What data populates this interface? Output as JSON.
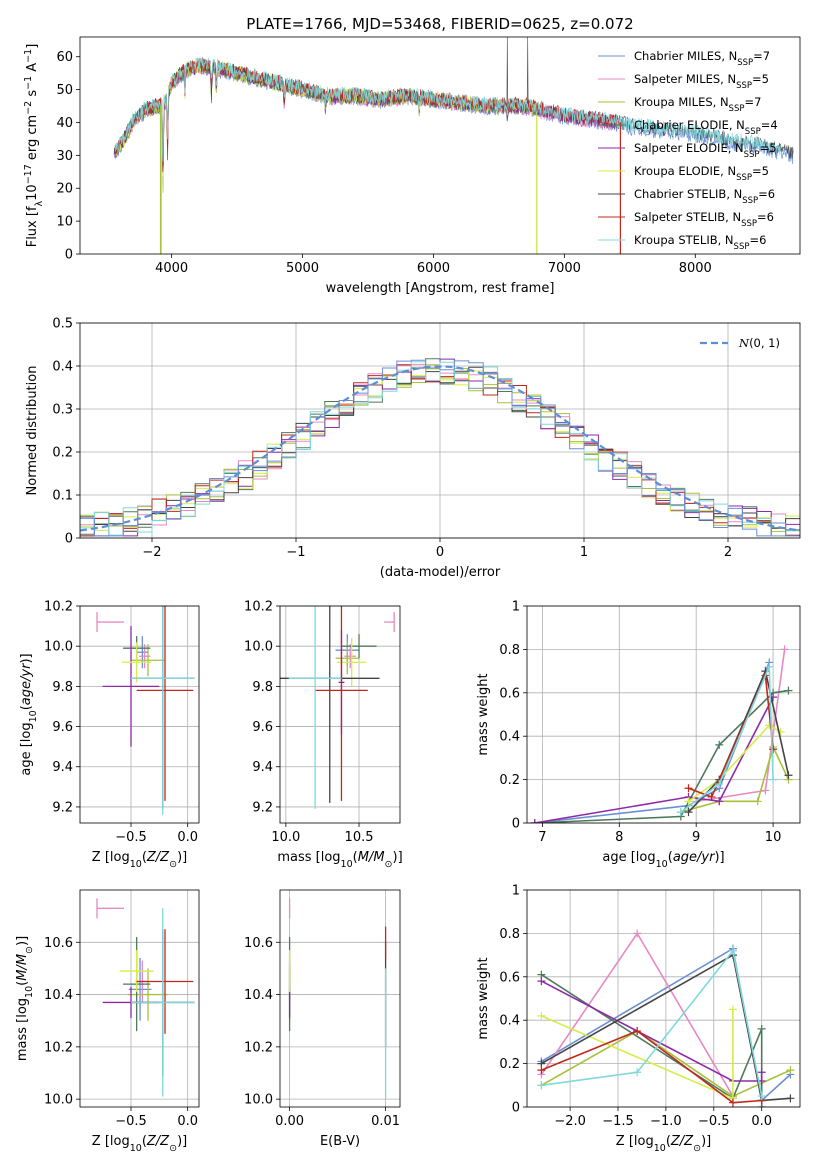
{
  "figure_title": "PLATE=1766, MJD=53468, FIBERID=0625, z=0.072",
  "colors": [
    "#6a8fd6",
    "#e68ac3",
    "#a6c13a",
    "#4e7a5c",
    "#8e2aa8",
    "#d6ec48",
    "#444444",
    "#c0281e",
    "#7fd8dc"
  ],
  "model_names": [
    "Chabrier MILES, N_SSP=7",
    "Salpeter MILES, N_SSP=5",
    "Kroupa MILES, N_SSP=7",
    "Chabrier ELODIE, N_SSP=4",
    "Salpeter ELODIE, N_SSP=5",
    "Kroupa ELODIE, N_SSP=5",
    "Chabrier STELIB, N_SSP=6",
    "Salpeter STELIB, N_SSP=6",
    "Kroupa STELIB, N_SSP=6"
  ],
  "chart_data": [
    {
      "id": "spectrum",
      "type": "line",
      "xlabel": "wavelength [Angstrom, rest frame]",
      "ylabel": "Flux [f_λ 10^-17 erg cm^-2 s^-1 A^-1]",
      "xlim": [
        3300,
        8800
      ],
      "ylim": [
        0,
        66
      ],
      "xticks": [
        4000,
        5000,
        6000,
        7000,
        8000
      ],
      "yticks": [
        0,
        10,
        20,
        30,
        40,
        50,
        60
      ],
      "grid": false,
      "legend": "top-right",
      "continuum": {
        "x": [
          3570,
          3640,
          3700,
          3800,
          3900,
          3950,
          4000,
          4100,
          4200,
          4300,
          4400,
          4500,
          4600,
          4700,
          4800,
          4900,
          5000,
          5200,
          5400,
          5600,
          5800,
          6000,
          6200,
          6400,
          6500,
          6600,
          6700,
          6800,
          6900,
          7000,
          7200,
          7400,
          7500,
          7700,
          7900,
          8100,
          8300,
          8500,
          8750
        ],
        "y": [
          31,
          35,
          40,
          44,
          45,
          46,
          52,
          56,
          57,
          57,
          56,
          55,
          54,
          53,
          52,
          51,
          50,
          48,
          48,
          47,
          48,
          47,
          46,
          45,
          45,
          45,
          45,
          44,
          43,
          42,
          41,
          40,
          39,
          38,
          37,
          36,
          34,
          33,
          30
        ]
      },
      "absorption_lines": [
        [
          3934,
          30
        ],
        [
          3969,
          20
        ],
        [
          4102,
          8
        ],
        [
          4304,
          10
        ],
        [
          4341,
          8
        ],
        [
          4861,
          7
        ],
        [
          5175,
          5
        ],
        [
          5890,
          4
        ],
        [
          6563,
          4
        ]
      ],
      "dropouts": [
        [
          3920,
          0
        ],
        [
          6790,
          0
        ],
        [
          7430,
          0
        ]
      ],
      "emission_spikes": [
        [
          6565,
          66
        ],
        [
          6720,
          66
        ]
      ]
    },
    {
      "id": "residual_hist",
      "type": "histogram",
      "xlabel": "(data-model)/error",
      "ylabel": "Normed distribution",
      "xlim": [
        -2.5,
        2.5
      ],
      "ylim": [
        0,
        0.5
      ],
      "xticks": [
        -2,
        -1,
        0,
        1,
        2
      ],
      "yticks": [
        0,
        0.1,
        0.2,
        0.3,
        0.4,
        0.5
      ],
      "grid": true,
      "legend": "top-right",
      "reference_curve": {
        "name": "N(0,1)",
        "mu": 0,
        "sigma": 1
      },
      "bin_width": 0.1
    },
    {
      "id": "age_vs_Z",
      "type": "scatter",
      "xlabel": "Z [log10(Z/Z_sun)]",
      "ylabel": "age [log10(age/yr)]",
      "xlim": [
        -0.95,
        0.1
      ],
      "ylim": [
        9.12,
        10.2
      ],
      "xticks": [
        -0.5,
        0.0
      ],
      "yticks": [
        9.2,
        9.4,
        9.6,
        9.8,
        10.0,
        10.2
      ],
      "grid": true,
      "points": [
        {
          "x": -0.4,
          "y": 9.97,
          "xerr": 0.05,
          "yerr": 0.08,
          "c": 0
        },
        {
          "x": -0.38,
          "y": 9.95,
          "xerr": 0.05,
          "yerr": 0.06,
          "c": 1
        },
        {
          "x": -0.35,
          "y": 9.93,
          "xerr": 0.15,
          "yerr": 0.08,
          "c": 2
        },
        {
          "x": -0.45,
          "y": 9.99,
          "xerr": 0.12,
          "yerr": 0.06,
          "c": 3
        },
        {
          "x": -0.5,
          "y": 9.8,
          "xerr": 0.25,
          "yerr": 0.3,
          "c": 4
        },
        {
          "x": -0.45,
          "y": 9.92,
          "xerr": 0.13,
          "yerr": 0.1,
          "c": 5
        },
        {
          "x": -0.22,
          "y": 9.84,
          "xerr": 0.28,
          "yerr": 0.65,
          "c": 6
        },
        {
          "x": -0.2,
          "y": 9.78,
          "xerr": 0.25,
          "yerr": 0.55,
          "c": 7
        },
        {
          "x": -0.22,
          "y": 9.84,
          "xerr": 0.28,
          "yerr": 0.68,
          "c": 8
        }
      ],
      "legend_sample": {
        "x": -0.8,
        "y": 10.12,
        "c": 1
      }
    },
    {
      "id": "age_vs_mass",
      "type": "scatter",
      "xlabel": "mass [log10(M/M_sun)]",
      "ylabel": "",
      "xlim": [
        9.96,
        10.78
      ],
      "ylim": [
        9.12,
        10.2
      ],
      "xticks": [
        10.0,
        10.5
      ],
      "yticks": [
        9.2,
        9.4,
        9.6,
        9.8,
        10.0,
        10.2
      ],
      "grid": true,
      "points": [
        {
          "x": 10.42,
          "y": 9.98,
          "xerr": 0.08,
          "yerr": 0.08,
          "c": 0
        },
        {
          "x": 10.44,
          "y": 9.95,
          "xerr": 0.04,
          "yerr": 0.06,
          "c": 1
        },
        {
          "x": 10.42,
          "y": 9.94,
          "xerr": 0.08,
          "yerr": 0.08,
          "c": 2
        },
        {
          "x": 10.5,
          "y": 10.0,
          "xerr": 0.12,
          "yerr": 0.06,
          "c": 3
        },
        {
          "x": 10.38,
          "y": 9.82,
          "xerr": 0.02,
          "yerr": 0.26,
          "c": 4
        },
        {
          "x": 10.45,
          "y": 9.92,
          "xerr": 0.1,
          "yerr": 0.12,
          "c": 5
        },
        {
          "x": 10.3,
          "y": 9.84,
          "xerr": 0.34,
          "yerr": 0.62,
          "c": 6
        },
        {
          "x": 10.38,
          "y": 9.78,
          "xerr": 0.18,
          "yerr": 0.55,
          "c": 7
        },
        {
          "x": 10.2,
          "y": 9.84,
          "xerr": 0.18,
          "yerr": 0.65,
          "c": 8
        }
      ],
      "legend_sample": {
        "x": 10.74,
        "y": 10.12,
        "c": 1
      }
    },
    {
      "id": "weight_vs_age",
      "type": "line",
      "xlabel": "age [log10(age/yr)]",
      "ylabel": "mass weight",
      "xlim": [
        6.8,
        10.35
      ],
      "ylim": [
        0,
        1.0
      ],
      "xticks": [
        7,
        8,
        9,
        10
      ],
      "yticks": [
        0,
        0.2,
        0.4,
        0.6,
        0.8,
        1.0
      ],
      "grid": true,
      "series": [
        {
          "c": 0,
          "x": [
            6.9,
            8.9,
            9.3,
            9.95
          ],
          "y": [
            0.0,
            0.08,
            0.16,
            0.74
          ]
        },
        {
          "c": 1,
          "x": [
            9.0,
            9.9,
            10.15
          ],
          "y": [
            0.1,
            0.15,
            0.8
          ]
        },
        {
          "c": 2,
          "x": [
            8.8,
            9.3,
            9.8,
            10.0,
            10.2
          ],
          "y": [
            0.05,
            0.1,
            0.1,
            0.35,
            0.2
          ]
        },
        {
          "c": 3,
          "x": [
            6.9,
            8.8,
            9.3,
            10.0,
            10.2
          ],
          "y": [
            0.0,
            0.03,
            0.36,
            0.6,
            0.61
          ]
        },
        {
          "c": 4,
          "x": [
            6.9,
            8.9,
            9.3,
            10.0
          ],
          "y": [
            0.0,
            0.12,
            0.1,
            0.58
          ]
        },
        {
          "c": 5,
          "x": [
            8.9,
            9.3,
            9.95,
            10.1
          ],
          "y": [
            0.1,
            0.2,
            0.45,
            0.42
          ]
        },
        {
          "c": 6,
          "x": [
            8.9,
            9.3,
            9.9,
            10.2
          ],
          "y": [
            0.05,
            0.2,
            0.7,
            0.22
          ]
        },
        {
          "c": 7,
          "x": [
            8.9,
            9.2,
            9.9,
            10.0
          ],
          "y": [
            0.16,
            0.12,
            0.68,
            0.34
          ]
        },
        {
          "c": 8,
          "x": [
            8.8,
            9.3,
            9.95,
            10.0
          ],
          "y": [
            0.05,
            0.18,
            0.72,
            0.2
          ]
        }
      ]
    },
    {
      "id": "mass_vs_Z",
      "type": "scatter",
      "xlabel": "Z [log10(Z/Z_sun)]",
      "ylabel": "mass [log10(M/M_sun)]",
      "xlim": [
        -0.95,
        0.1
      ],
      "ylim": [
        9.97,
        10.8
      ],
      "xticks": [
        -0.5,
        0.0
      ],
      "yticks": [
        10.0,
        10.2,
        10.4,
        10.6
      ],
      "grid": true,
      "points": [
        {
          "x": -0.42,
          "y": 10.42,
          "xerr": 0.1,
          "yerr": 0.12,
          "c": 0
        },
        {
          "x": -0.4,
          "y": 10.45,
          "xerr": 0.06,
          "yerr": 0.08,
          "c": 1
        },
        {
          "x": -0.35,
          "y": 10.4,
          "xerr": 0.18,
          "yerr": 0.1,
          "c": 2
        },
        {
          "x": -0.45,
          "y": 10.44,
          "xerr": 0.12,
          "yerr": 0.18,
          "c": 3
        },
        {
          "x": -0.5,
          "y": 10.37,
          "xerr": 0.25,
          "yerr": 0.06,
          "c": 4
        },
        {
          "x": -0.45,
          "y": 10.49,
          "xerr": 0.15,
          "yerr": 0.08,
          "c": 5
        },
        {
          "x": -0.22,
          "y": 10.37,
          "xerr": 0.28,
          "yerr": 0.28,
          "c": 6
        },
        {
          "x": -0.2,
          "y": 10.45,
          "xerr": 0.25,
          "yerr": 0.2,
          "c": 7
        },
        {
          "x": -0.22,
          "y": 10.37,
          "xerr": 0.28,
          "yerr": 0.36,
          "c": 8
        }
      ],
      "legend_sample": {
        "x": -0.8,
        "y": 10.73,
        "c": 1
      }
    },
    {
      "id": "mass_vs_EBV",
      "type": "scatter",
      "xlabel": "E(B-V)",
      "ylabel": "",
      "xlim": [
        -0.001,
        0.0115
      ],
      "ylim": [
        9.97,
        10.8
      ],
      "xticks": [
        0.0,
        0.01
      ],
      "yticks": [
        10.0,
        10.2,
        10.4,
        10.6
      ],
      "grid": true,
      "points": [
        {
          "x": 0.0,
          "y": 10.42,
          "xerr": 0,
          "yerr": 0.1,
          "c": 0
        },
        {
          "x": 0.0,
          "y": 10.45,
          "xerr": 0,
          "yerr": 0.08,
          "c": 1
        },
        {
          "x": 0.0,
          "y": 10.4,
          "xerr": 0,
          "yerr": 0.1,
          "c": 2
        },
        {
          "x": 0.0,
          "y": 10.44,
          "xerr": 0,
          "yerr": 0.18,
          "c": 3
        },
        {
          "x": 0.0,
          "y": 10.37,
          "xerr": 0,
          "yerr": 0.06,
          "c": 4
        },
        {
          "x": 0.0,
          "y": 10.49,
          "xerr": 0,
          "yerr": 0.08,
          "c": 5
        },
        {
          "x": 0.01,
          "y": 10.4,
          "xerr": 0,
          "yerr": 0.2,
          "c": 6
        },
        {
          "x": 0.01,
          "y": 10.6,
          "xerr": 0,
          "yerr": 0.06,
          "c": 7
        },
        {
          "x": 0.01,
          "y": 10.25,
          "xerr": 0,
          "yerr": 0.25,
          "c": 8
        }
      ],
      "legend_sample": {
        "x": 0.0,
        "y": 10.73,
        "c": 1
      }
    },
    {
      "id": "weight_vs_Z",
      "type": "line",
      "xlabel": "Z [log10(Z/Z_sun)]",
      "ylabel": "mass weight",
      "xlim": [
        -2.45,
        0.4
      ],
      "ylim": [
        0,
        1.0
      ],
      "xticks": [
        -2.0,
        -1.5,
        -1.0,
        -0.5,
        0.0
      ],
      "yticks": [
        0,
        0.2,
        0.4,
        0.6,
        0.8,
        1.0
      ],
      "grid": true,
      "series": [
        {
          "c": 0,
          "x": [
            -2.3,
            -0.3,
            0.0,
            0.3
          ],
          "y": [
            0.21,
            0.73,
            0.03,
            0.15
          ]
        },
        {
          "c": 1,
          "x": [
            -2.3,
            -1.3,
            -0.3
          ],
          "y": [
            0.15,
            0.8,
            0.05
          ]
        },
        {
          "c": 2,
          "x": [
            -2.3,
            -1.3,
            -0.3,
            0.3
          ],
          "y": [
            0.1,
            0.35,
            0.05,
            0.17
          ]
        },
        {
          "c": 3,
          "x": [
            -2.3,
            -0.3,
            0.0,
            0.0
          ],
          "y": [
            0.61,
            0.04,
            0.36,
            0.0
          ]
        },
        {
          "c": 4,
          "x": [
            -2.3,
            -0.3,
            0.0,
            0.0
          ],
          "y": [
            0.58,
            0.12,
            0.12,
            0.16
          ]
        },
        {
          "c": 5,
          "x": [
            -2.3,
            -0.3,
            -0.3
          ],
          "y": [
            0.42,
            0.04,
            0.45
          ]
        },
        {
          "c": 6,
          "x": [
            -2.3,
            -0.3,
            0.0,
            0.3
          ],
          "y": [
            0.2,
            0.7,
            0.03,
            0.04
          ]
        },
        {
          "c": 7,
          "x": [
            -2.3,
            -1.3,
            -0.3,
            0.0
          ],
          "y": [
            0.17,
            0.35,
            0.02,
            0.03
          ]
        },
        {
          "c": 8,
          "x": [
            -2.3,
            -1.3,
            -0.3,
            0.0
          ],
          "y": [
            0.1,
            0.16,
            0.72,
            0.05
          ]
        }
      ]
    }
  ]
}
